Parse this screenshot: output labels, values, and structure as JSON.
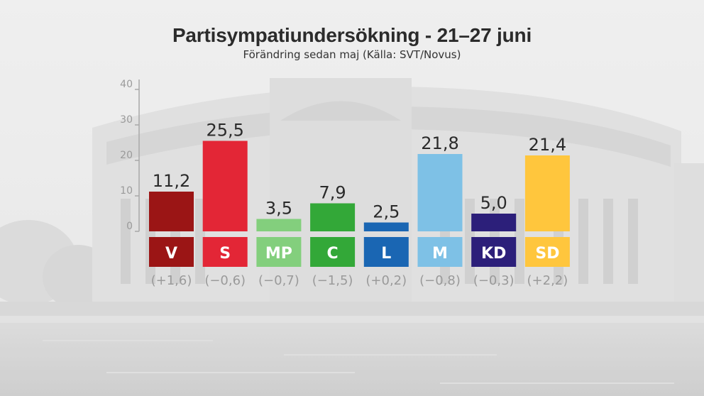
{
  "chart_data": {
    "type": "bar",
    "title": "Partisympatiundersökning - 21–27 juni",
    "subtitle": "Förändring sedan maj (Källa: SVT/Novus)",
    "categories": [
      "V",
      "S",
      "MP",
      "C",
      "L",
      "M",
      "KD",
      "SD"
    ],
    "values": [
      11.2,
      25.5,
      3.5,
      7.9,
      2.5,
      21.8,
      5.0,
      21.4
    ],
    "value_labels": [
      "11,2",
      "25,5",
      "3,5",
      "7,9",
      "2,5",
      "21,8",
      "5,0",
      "21,4"
    ],
    "change_labels": [
      "(+1,6)",
      "(−0,6)",
      "(−0,7)",
      "(−1,5)",
      "(+0,2)",
      "(−0,8)",
      "(−0,3)",
      "(+2,2)"
    ],
    "colors": [
      "#9b1515",
      "#e32636",
      "#83cf7d",
      "#33a838",
      "#1a66b3",
      "#7ec1e6",
      "#2c1f7a",
      "#ffc63d"
    ],
    "yticks": [
      0,
      10,
      20,
      30,
      40
    ],
    "ylim": [
      0,
      40
    ],
    "grid": false,
    "xlabel": "",
    "ylabel": ""
  }
}
